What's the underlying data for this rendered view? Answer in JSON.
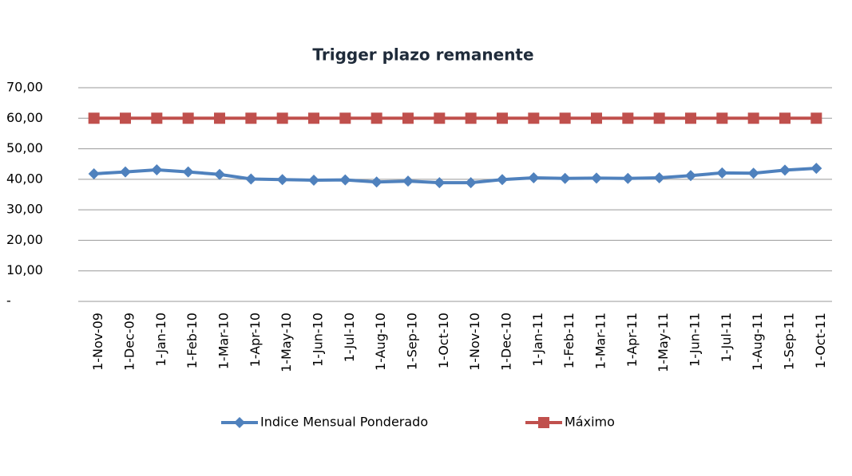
{
  "chart_data": {
    "type": "line",
    "title": "Trigger plazo remanente",
    "categories": [
      "1-Nov-09",
      "1-Dec-09",
      "1-Jan-10",
      "1-Feb-10",
      "1-Mar-10",
      "1-Apr-10",
      "1-May-10",
      "1-Jun-10",
      "1-Jul-10",
      "1-Aug-10",
      "1-Sep-10",
      "1-Oct-10",
      "1-Nov-10",
      "1-Dec-10",
      "1-Jan-11",
      "1-Feb-11",
      "1-Mar-11",
      "1-Apr-11",
      "1-May-11",
      "1-Jun-11",
      "1-Jul-11",
      "1-Aug-11",
      "1-Sep-11",
      "1-Oct-11"
    ],
    "series": [
      {
        "name": "Indice Mensual Ponderado",
        "color": "#4f81bd",
        "marker": "diamond",
        "values": [
          41.8,
          42.4,
          43.1,
          42.4,
          41.6,
          40.1,
          39.9,
          39.7,
          39.8,
          39.1,
          39.4,
          38.9,
          38.9,
          39.9,
          40.5,
          40.3,
          40.4,
          40.3,
          40.5,
          41.2,
          42.1,
          42.0,
          43.0,
          43.6
        ]
      },
      {
        "name": "Máximo",
        "color": "#c0504d",
        "marker": "square",
        "values": [
          60,
          60,
          60,
          60,
          60,
          60,
          60,
          60,
          60,
          60,
          60,
          60,
          60,
          60,
          60,
          60,
          60,
          60,
          60,
          60,
          60,
          60,
          60,
          60
        ]
      }
    ],
    "ylim": [
      0,
      70
    ],
    "yticks": [
      {
        "value": 0,
        "label": "-"
      },
      {
        "value": 10,
        "label": "10,00"
      },
      {
        "value": 20,
        "label": "20,00"
      },
      {
        "value": 30,
        "label": "30,00"
      },
      {
        "value": 40,
        "label": "40,00"
      },
      {
        "value": 50,
        "label": "50,00"
      },
      {
        "value": 60,
        "label": "60,00"
      },
      {
        "value": 70,
        "label": "70,00"
      }
    ],
    "grid": true,
    "legend": "bottom"
  }
}
